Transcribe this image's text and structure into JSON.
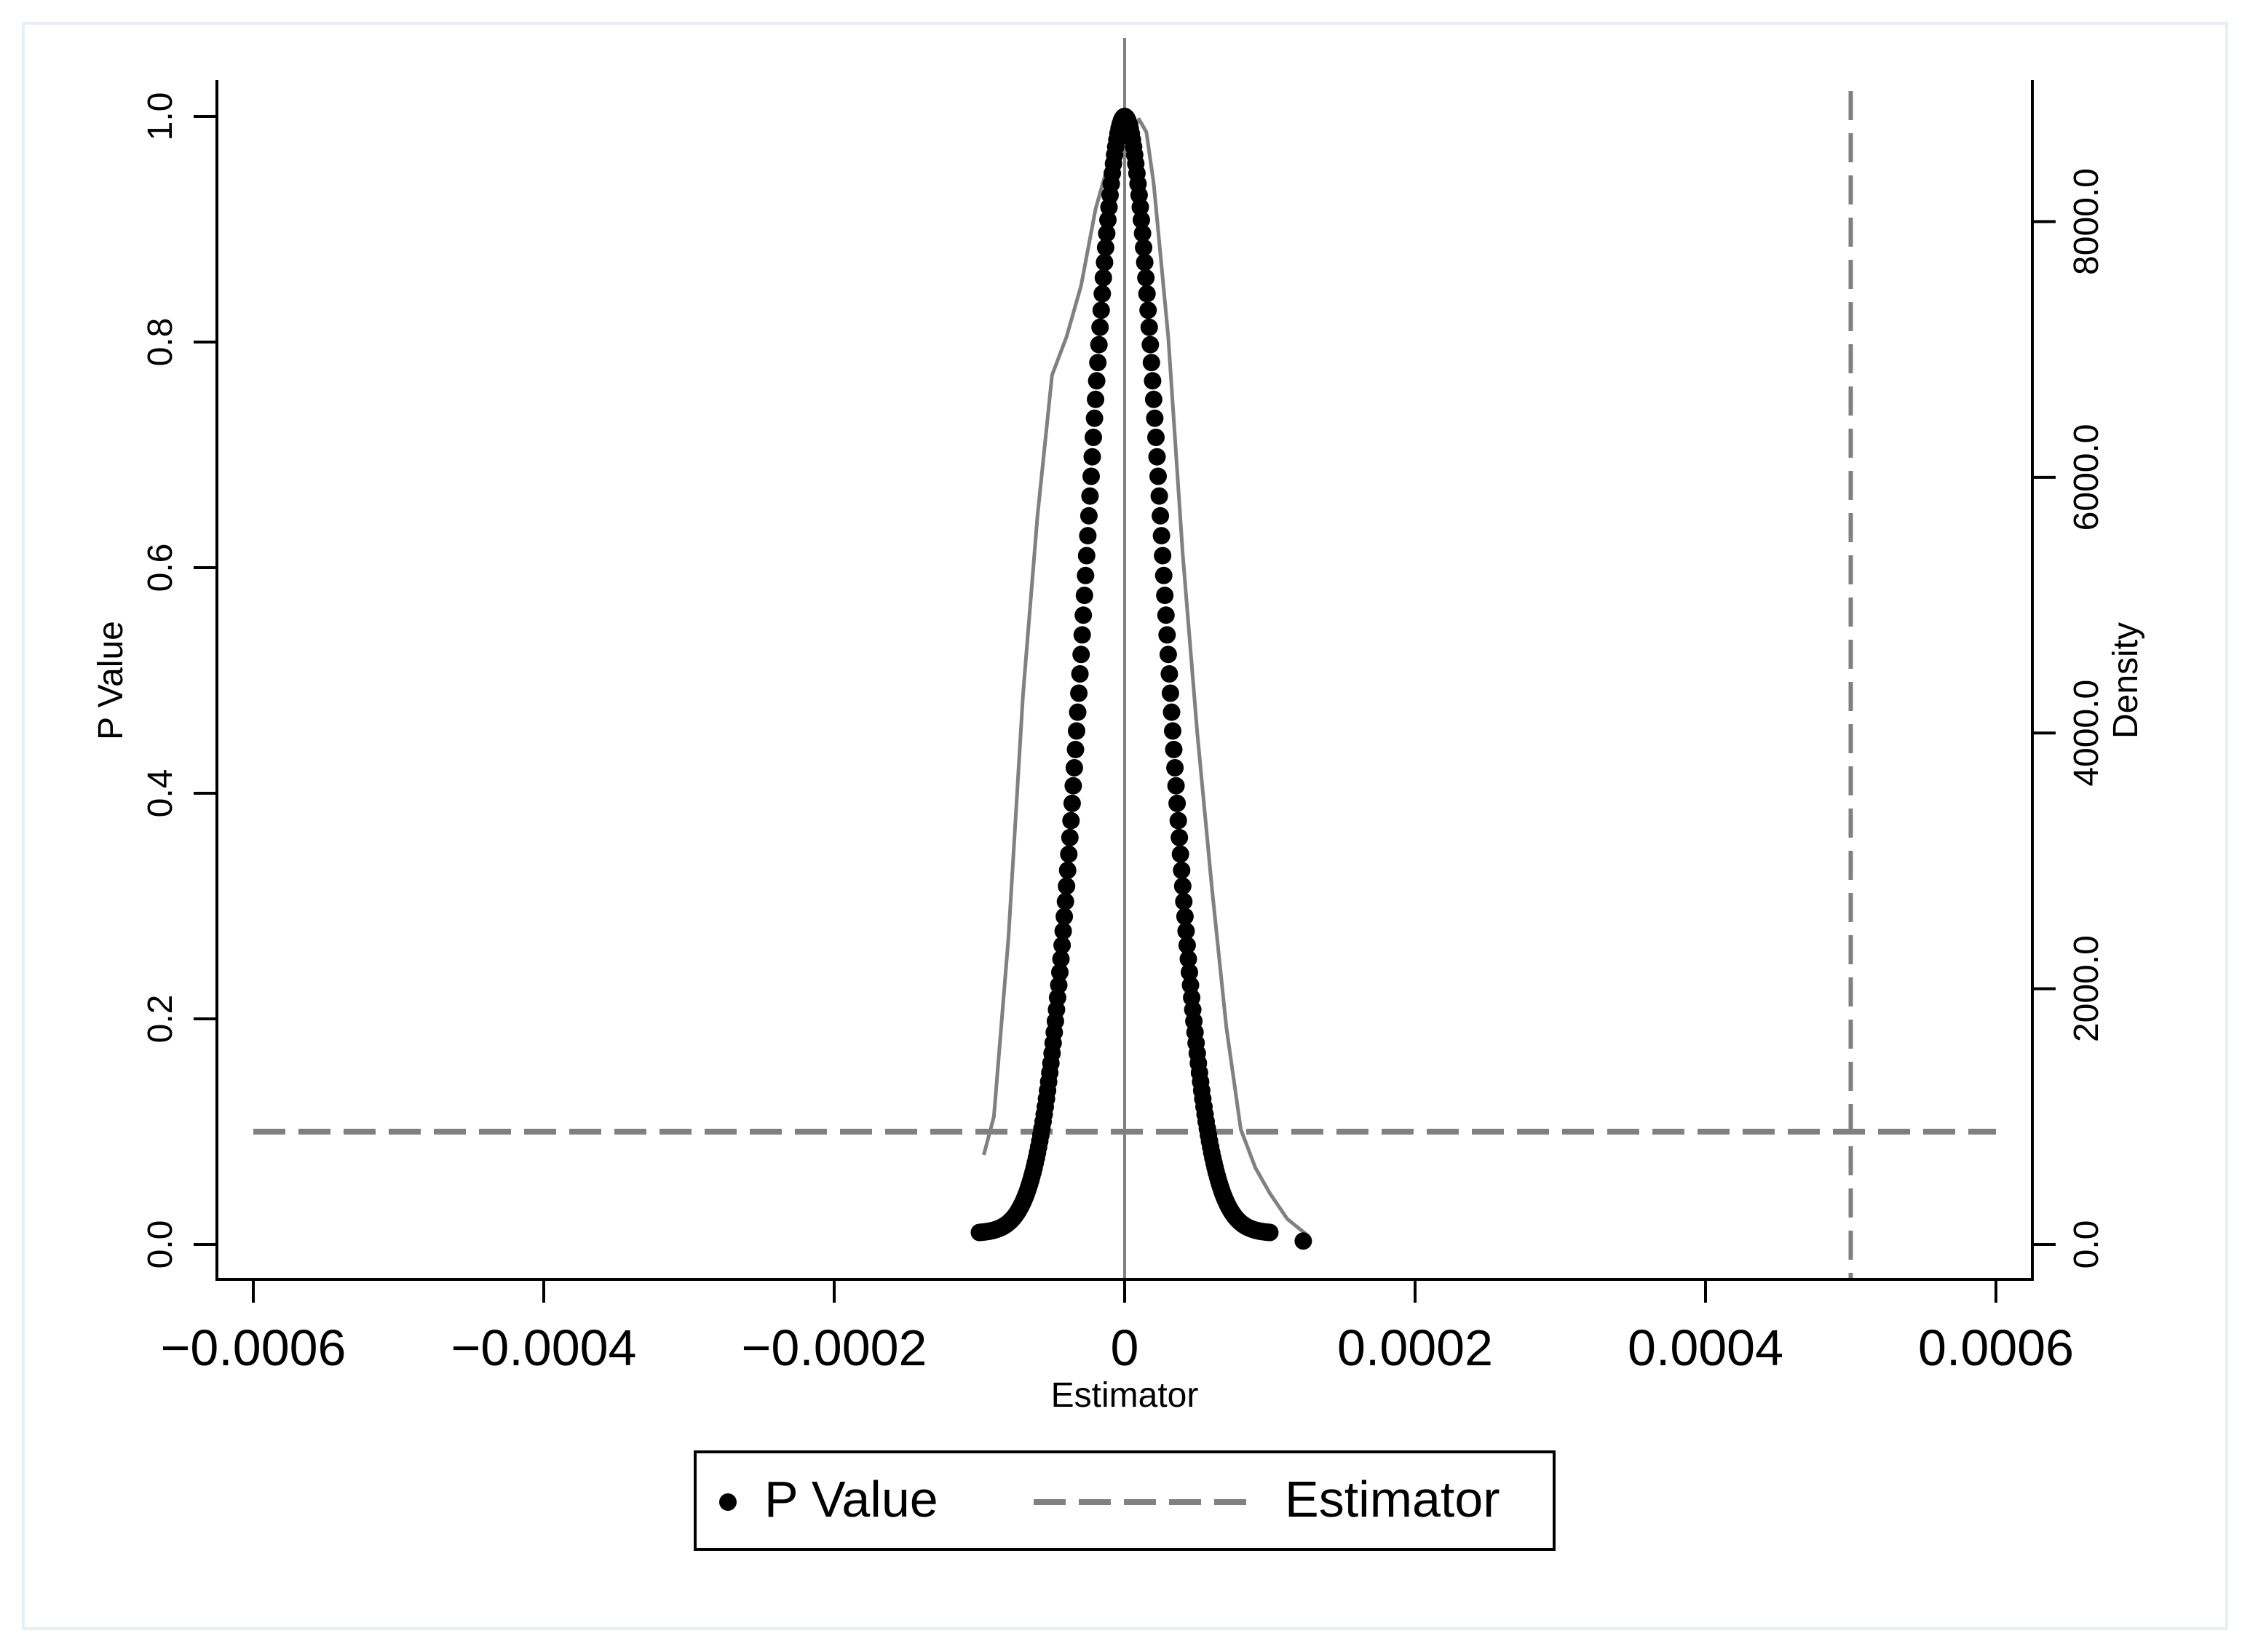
{
  "chart_data": {
    "type": "scatter",
    "xlabel": "Estimator",
    "ylabel": "P Value",
    "y2label": "Density",
    "xlim": [
      -0.0006,
      0.0006
    ],
    "ylim": [
      0,
      1
    ],
    "y2lim": [
      0,
      8800
    ],
    "x_ticks": [
      {
        "value": -0.0006,
        "label": "−0.0006"
      },
      {
        "value": -0.0004,
        "label": "−0.0004"
      },
      {
        "value": -0.0002,
        "label": "−0.0002"
      },
      {
        "value": 0,
        "label": "0"
      },
      {
        "value": 0.0002,
        "label": "0.0002"
      },
      {
        "value": 0.0004,
        "label": "0.0004"
      },
      {
        "value": 0.0006,
        "label": "0.0006"
      }
    ],
    "y_ticks": [
      {
        "value": 0,
        "label": "0.0"
      },
      {
        "value": 0.2,
        "label": "0.2"
      },
      {
        "value": 0.4,
        "label": "0.4"
      },
      {
        "value": 0.6,
        "label": "0.6"
      },
      {
        "value": 0.8,
        "label": "0.8"
      },
      {
        "value": 1.0,
        "label": "1.0"
      }
    ],
    "y2_ticks": [
      {
        "value": 0,
        "label": "0.0"
      },
      {
        "value": 2000,
        "label": "2000.0"
      },
      {
        "value": 4000,
        "label": "4000.0"
      },
      {
        "value": 6000,
        "label": "6000.0"
      },
      {
        "value": 8000,
        "label": "8000.0"
      }
    ],
    "grid": false,
    "legend": {
      "position": "bottom",
      "entries": [
        "P Value",
        "Estimator"
      ]
    },
    "reference_lines": {
      "horizontal_p": 0.1,
      "vertical_zero": 0,
      "vertical_estimator": 0.0005
    },
    "series": [
      {
        "name": "P Value",
        "type": "scatter",
        "color": "#000000",
        "peak_x": 0,
        "left_tail_x": -0.0001,
        "right_tail_x": 0.0001,
        "shape": "gaussian-like peak, p = exp(-(x/3.7e-5)^2)",
        "outlier": {
          "x": 0.000123,
          "y": 0.003
        }
      },
      {
        "type": "line",
        "axis": "y2",
        "color": "#808080",
        "points": [
          [
            -9.7e-05,
            700
          ],
          [
            -9e-05,
            1000
          ],
          [
            -8e-05,
            2400
          ],
          [
            -7e-05,
            4300
          ],
          [
            -6e-05,
            5700
          ],
          [
            -5e-05,
            6800
          ],
          [
            -4e-05,
            7100
          ],
          [
            -3e-05,
            7500
          ],
          [
            -2e-05,
            8100
          ],
          [
            -1e-05,
            8500
          ],
          [
            0,
            8800
          ],
          [
            5e-06,
            8700
          ],
          [
            1e-05,
            8800
          ],
          [
            1.5e-05,
            8700
          ],
          [
            2e-05,
            8300
          ],
          [
            3e-05,
            7100
          ],
          [
            4e-05,
            5400
          ],
          [
            5e-05,
            4000
          ],
          [
            6e-05,
            2800
          ],
          [
            7e-05,
            1700
          ],
          [
            8e-05,
            900
          ],
          [
            9e-05,
            600
          ],
          [
            0.0001,
            400
          ],
          [
            0.000112,
            200
          ],
          [
            0.000125,
            80
          ]
        ]
      }
    ]
  },
  "colors": {
    "points": "#000000",
    "density": "#808080",
    "reference": "#808080",
    "frame": "#e6f0f2"
  }
}
